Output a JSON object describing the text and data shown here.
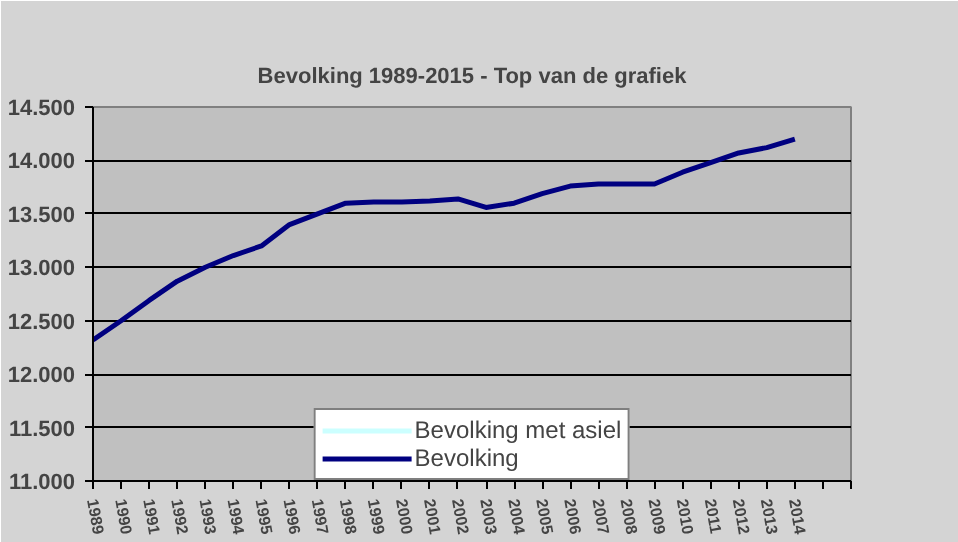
{
  "chart_data": {
    "type": "line",
    "title": "Bevolking 1989-2015 - Top van de grafiek",
    "categories": [
      "1989",
      "1990",
      "1991",
      "1992",
      "1993",
      "1994",
      "1995",
      "1996",
      "1997",
      "1998",
      "1999",
      "2000",
      "2001",
      "2002",
      "2003",
      "2004",
      "2005",
      "2006",
      "2007",
      "2008",
      "2009",
      "2010",
      "2011",
      "2012",
      "2013",
      "2014",
      null
    ],
    "series": [
      {
        "name": "Bevolking met asiel",
        "color": "#ccffff",
        "values": [
          null,
          null,
          null,
          null,
          null,
          null,
          null,
          null,
          null,
          null,
          null,
          null,
          null,
          null,
          null,
          null,
          null,
          null,
          null,
          null,
          null,
          null,
          null,
          null,
          null,
          null,
          null
        ]
      },
      {
        "name": "Bevolking",
        "color": "#000080",
        "values": [
          12320,
          12500,
          12690,
          12870,
          13000,
          13110,
          13200,
          13400,
          13500,
          13600,
          13610,
          13610,
          13620,
          13640,
          13560,
          13600,
          13690,
          13760,
          13780,
          13780,
          13780,
          13890,
          13980,
          14070,
          14120,
          14200,
          null
        ]
      }
    ],
    "ylim": [
      11000,
      14500
    ],
    "yticks": [
      {
        "value": 11000,
        "label": "11.000"
      },
      {
        "value": 11500,
        "label": "11.500"
      },
      {
        "value": 12000,
        "label": "12.000"
      },
      {
        "value": 12500,
        "label": "12.500"
      },
      {
        "value": 13000,
        "label": "13.000"
      },
      {
        "value": 13500,
        "label": "13.500"
      },
      {
        "value": 14000,
        "label": "14.000"
      },
      {
        "value": 14500,
        "label": "14.500"
      }
    ],
    "grid": "y",
    "legend": "bottom",
    "marker": "none",
    "line_style": "solid"
  }
}
